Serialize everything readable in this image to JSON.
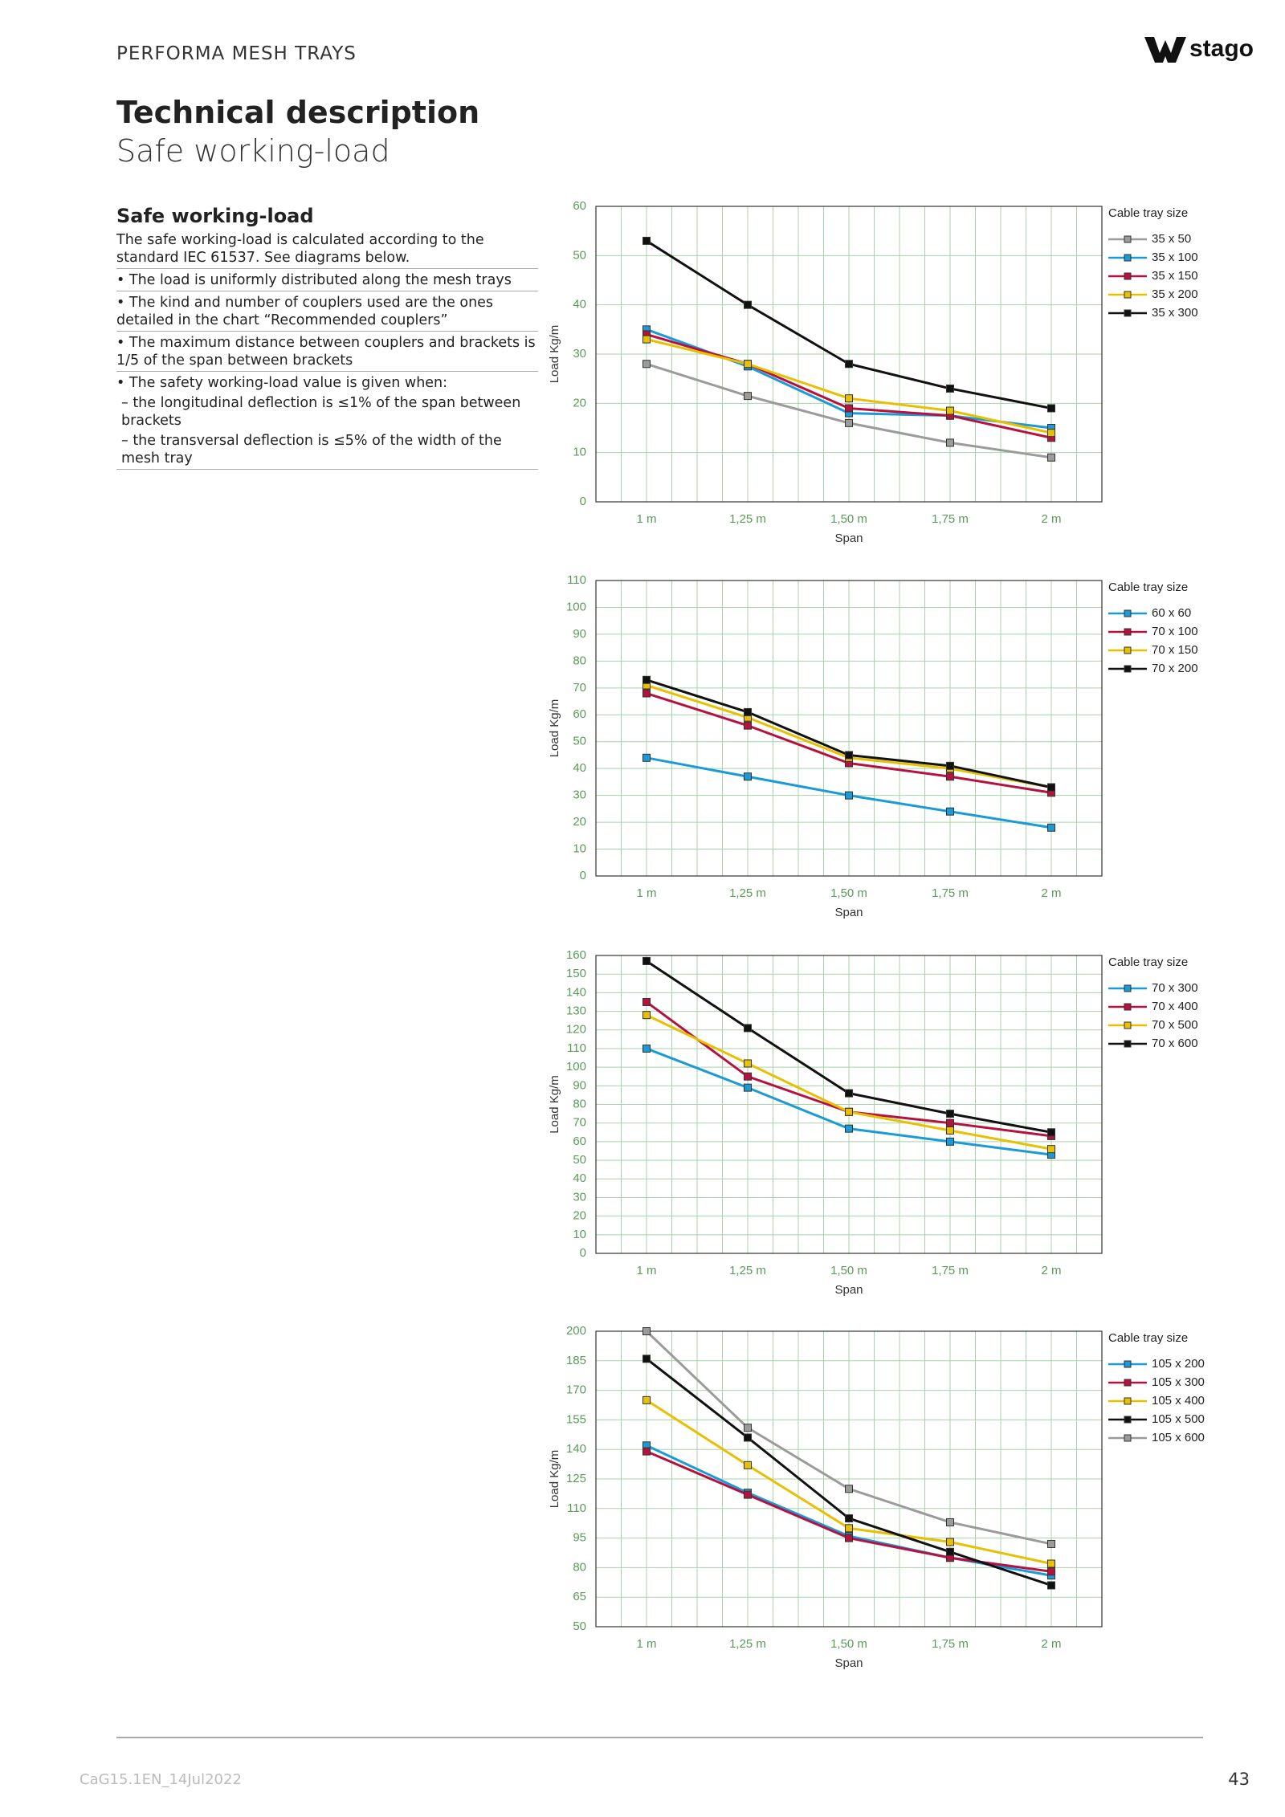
{
  "header": {
    "running_title": "PERFORMA MESH TRAYS",
    "logo": "stago",
    "title": "Technical description",
    "subtitle": "Safe working-load"
  },
  "section": {
    "heading": "Safe working-load",
    "items": [
      "The safe working-load is calculated according to the standard IEC 61537. See diagrams below.",
      "• The load is uniformly distributed along the mesh trays",
      "• The kind and number of couplers used are the ones detailed in the chart “Recommended couplers”",
      "• The maximum distance between couplers and brackets is 1/5 of the span between brackets",
      "• The safety working-load value is given when:",
      "– the longitudinal deflection is ≤1% of the span between brackets",
      "– the transversal deflection is ≤5% of the width of the mesh tray"
    ]
  },
  "chart_data": [
    {
      "type": "line",
      "xlabel": "Span",
      "ylabel": "Load Kg/m",
      "legend_title": "Cable tray size",
      "legend": "right",
      "grid": true,
      "categories": [
        "1 m",
        "1,25 m",
        "1,50 m",
        "1,75 m",
        "2 m"
      ],
      "ylim": [
        0,
        60
      ],
      "yticks": [
        0,
        10,
        20,
        30,
        40,
        50,
        60
      ],
      "series": [
        {
          "name": "35 x 50",
          "color": "#9b9b9b",
          "values": [
            28,
            21.5,
            16,
            12,
            9
          ]
        },
        {
          "name": "35 x 100",
          "color": "#1a9ad6",
          "values": [
            35,
            27.5,
            18,
            17.5,
            15
          ]
        },
        {
          "name": "35 x 150",
          "color": "#b5123f",
          "values": [
            34,
            28,
            19,
            17.5,
            13
          ]
        },
        {
          "name": "35 x 200",
          "color": "#e8c000",
          "values": [
            33,
            28,
            21,
            18.5,
            14
          ]
        },
        {
          "name": "35 x 300",
          "color": "#111111",
          "values": [
            53,
            40,
            28,
            23,
            19
          ]
        }
      ]
    },
    {
      "type": "line",
      "xlabel": "Span",
      "ylabel": "Load Kg/m",
      "legend_title": "Cable tray size",
      "legend": "right",
      "grid": true,
      "categories": [
        "1 m",
        "1,25 m",
        "1,50 m",
        "1,75 m",
        "2 m"
      ],
      "ylim": [
        0,
        110
      ],
      "yticks": [
        0,
        10,
        20,
        30,
        40,
        50,
        60,
        70,
        80,
        90,
        100,
        110
      ],
      "series": [
        {
          "name": "60 x 60",
          "color": "#1a9ad6",
          "values": [
            44,
            37,
            30,
            24,
            18
          ]
        },
        {
          "name": "70 x 100",
          "color": "#b5123f",
          "values": [
            68,
            56,
            42,
            37,
            31
          ]
        },
        {
          "name": "70 x 150",
          "color": "#e8c000",
          "values": [
            71,
            59,
            44,
            40,
            33
          ]
        },
        {
          "name": "70 x 200",
          "color": "#111111",
          "values": [
            73,
            61,
            45,
            41,
            33
          ]
        }
      ]
    },
    {
      "type": "line",
      "xlabel": "Span",
      "ylabel": "Load Kg/m",
      "legend_title": "Cable tray size",
      "legend": "right",
      "grid": true,
      "categories": [
        "1 m",
        "1,25 m",
        "1,50 m",
        "1,75 m",
        "2 m"
      ],
      "ylim": [
        0,
        160
      ],
      "yticks": [
        0,
        10,
        20,
        30,
        40,
        50,
        60,
        70,
        80,
        90,
        100,
        110,
        120,
        130,
        140,
        150,
        160
      ],
      "series": [
        {
          "name": "70 x 300",
          "color": "#1a9ad6",
          "values": [
            110,
            89,
            67,
            60,
            53
          ]
        },
        {
          "name": "70 x 400",
          "color": "#b5123f",
          "values": [
            135,
            95,
            76,
            70,
            63
          ]
        },
        {
          "name": "70 x 500",
          "color": "#e8c000",
          "values": [
            128,
            102,
            76,
            66,
            56
          ]
        },
        {
          "name": "70 x 600",
          "color": "#111111",
          "values": [
            157,
            121,
            86,
            75,
            65
          ]
        }
      ]
    },
    {
      "type": "line",
      "xlabel": "Span",
      "ylabel": "Load Kg/m",
      "legend_title": "Cable tray size",
      "legend": "right",
      "grid": true,
      "categories": [
        "1 m",
        "1,25 m",
        "1,50 m",
        "1,75 m",
        "2 m"
      ],
      "ylim": [
        50,
        200
      ],
      "yticks": [
        50,
        65,
        80,
        95,
        110,
        125,
        140,
        155,
        170,
        185,
        200
      ],
      "series": [
        {
          "name": "105 x 200",
          "color": "#1a9ad6",
          "values": [
            142,
            118,
            96,
            85,
            76
          ]
        },
        {
          "name": "105 x 300",
          "color": "#b5123f",
          "values": [
            139,
            117,
            95,
            85,
            78
          ]
        },
        {
          "name": "105 x 400",
          "color": "#e8c000",
          "values": [
            165,
            132,
            100,
            93,
            82
          ]
        },
        {
          "name": "105 x 500",
          "color": "#111111",
          "values": [
            186,
            146,
            105,
            88,
            71
          ]
        },
        {
          "name": "105 x 600",
          "color": "#9b9b9b",
          "values": [
            200,
            151,
            120,
            103,
            92
          ]
        }
      ]
    }
  ],
  "footer": {
    "code": "CaG15.1EN_14Jul2022",
    "page": "43"
  }
}
